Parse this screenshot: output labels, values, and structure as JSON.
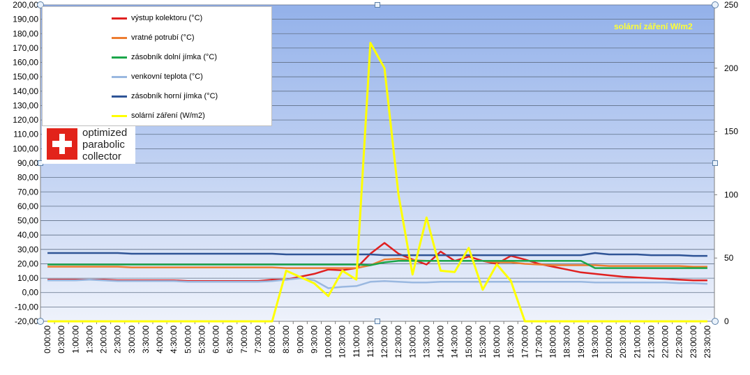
{
  "chart_data": {
    "type": "line",
    "title": "",
    "annotation": "solární záření W/m2",
    "y_left": {
      "ylim": [
        -20,
        200
      ],
      "step": 10,
      "ticks": [
        "-20,00",
        "-10,00",
        "0,00",
        "10,00",
        "20,00",
        "30,00",
        "40,00",
        "50,00",
        "60,00",
        "70,00",
        "80,00",
        "90,00",
        "100,00",
        "110,00",
        "120,00",
        "130,00",
        "140,00",
        "150,00",
        "160,00",
        "170,00",
        "180,00",
        "190,00",
        "200,00"
      ]
    },
    "y_right": {
      "ylim": [
        0,
        250
      ],
      "step": 50,
      "ticks": [
        "0",
        "50",
        "100",
        "150",
        "200",
        "250"
      ]
    },
    "grid": true,
    "legend_position": "top-left",
    "x": [
      "0:00:00",
      "0:30:00",
      "1:00:00",
      "1:30:00",
      "2:00:00",
      "2:30:00",
      "3:00:00",
      "3:30:00",
      "4:00:00",
      "4:30:00",
      "5:00:00",
      "5:30:00",
      "6:00:00",
      "6:30:00",
      "7:00:00",
      "7:30:00",
      "8:00:00",
      "8:30:00",
      "9:00:00",
      "9:30:00",
      "10:00:00",
      "10:30:00",
      "11:00:00",
      "11:30:00",
      "12:00:00",
      "12:30:00",
      "13:00:00",
      "13:30:00",
      "14:00:00",
      "14:30:00",
      "15:00:00",
      "15:30:00",
      "16:00:00",
      "16:30:00",
      "17:00:00",
      "17:30:00",
      "18:00:00",
      "18:30:00",
      "19:00:00",
      "19:30:00",
      "20:00:00",
      "20:30:00",
      "21:00:00",
      "21:30:00",
      "22:00:00",
      "22:30:00",
      "23:00:00",
      "23:30:00"
    ],
    "series": [
      {
        "name": "výstup kolektoru (°C)",
        "color": "#e02020",
        "axis": "left",
        "values": [
          9,
          9,
          9,
          9,
          9,
          8.5,
          8.5,
          8.5,
          8.5,
          8.5,
          8,
          8,
          8,
          8,
          8,
          8,
          9,
          9,
          11,
          13,
          16,
          15.5,
          17,
          27,
          34.5,
          27,
          23,
          19.5,
          28.5,
          22,
          25,
          22,
          20,
          25.5,
          23,
          20,
          18,
          16,
          14,
          13,
          12,
          11,
          10.5,
          10,
          9.5,
          9,
          8.5,
          8.5
        ]
      },
      {
        "name": "vratné potrubí (°C)",
        "color": "#ed7d31",
        "axis": "left",
        "values": [
          18,
          18,
          18,
          18,
          18,
          18,
          17.5,
          17.5,
          17.5,
          17.5,
          17.5,
          17.5,
          17.5,
          17.5,
          17.5,
          17.5,
          17.5,
          17,
          17,
          17,
          17,
          17,
          17,
          19,
          23,
          23.5,
          22.5,
          22,
          22,
          22,
          22,
          22,
          21,
          21,
          20,
          19.5,
          19,
          19,
          19,
          19,
          18.5,
          18.5,
          18.5,
          18.5,
          18.5,
          18.5,
          18,
          18
        ]
      },
      {
        "name": "zásobník dolní jímka  (°C)",
        "color": "#1ba64a",
        "axis": "left",
        "values": [
          19.5,
          19.5,
          19.5,
          19.5,
          19.5,
          19.5,
          19.5,
          19.5,
          19.5,
          19.5,
          19.5,
          19.5,
          19.5,
          19.5,
          19.5,
          19.5,
          19.5,
          19.5,
          19.5,
          19.5,
          19.5,
          19.5,
          19.5,
          19,
          21,
          22,
          22,
          22,
          22,
          22,
          22,
          22,
          22,
          22,
          22,
          22,
          22,
          22,
          22,
          17,
          17,
          17,
          17,
          17,
          17,
          17,
          17,
          17
        ]
      },
      {
        "name": "venkovní teplota (°C)",
        "color": "#9ab8e0",
        "axis": "left",
        "values": [
          8.5,
          8.5,
          8.5,
          9,
          8.5,
          8,
          8,
          8,
          8,
          8,
          7.5,
          7.5,
          7.5,
          7.5,
          7.5,
          7.5,
          8,
          9,
          10,
          8.5,
          3,
          4,
          4.5,
          7.5,
          8,
          7.5,
          7,
          7,
          7.5,
          7.5,
          7.5,
          7.5,
          7.5,
          7.5,
          7.5,
          7.5,
          7.5,
          7.5,
          7.5,
          7,
          7,
          7,
          7,
          7,
          7,
          6.5,
          6.5,
          6
        ]
      },
      {
        "name": "zásobník horní jímka (°C)",
        "color": "#2f5496",
        "axis": "left",
        "values": [
          27.5,
          27.5,
          27.5,
          27.5,
          27.5,
          27.5,
          27,
          27,
          27,
          27,
          27,
          27,
          27,
          27,
          27,
          27,
          27,
          26.5,
          26.5,
          26.5,
          26.5,
          26.5,
          26.5,
          26.5,
          26,
          26,
          26,
          26,
          26,
          26,
          26,
          26,
          26,
          26,
          26,
          26,
          26,
          26,
          26,
          27.5,
          26.5,
          26.5,
          26.5,
          26,
          26,
          26,
          25.5,
          25.5
        ]
      },
      {
        "name": "solární záření (W/m2)",
        "color": "#ffff00",
        "axis": "right",
        "values": [
          0,
          0,
          0,
          0,
          0,
          0,
          0,
          0,
          0,
          0,
          0,
          0,
          0,
          0,
          0,
          0,
          0,
          40,
          35,
          30,
          20,
          40,
          33,
          220,
          200,
          100,
          37,
          82,
          40,
          39,
          58,
          25,
          45,
          32,
          0,
          0,
          0,
          0,
          0,
          0,
          0,
          0,
          0,
          0,
          0,
          0,
          0,
          0
        ]
      }
    ]
  },
  "legend": {
    "items": [
      {
        "label": "výstup kolektoru (°C)",
        "color": "#e02020"
      },
      {
        "label": "vratné potrubí (°C)",
        "color": "#ed7d31"
      },
      {
        "label": "zásobník dolní jímka  (°C)",
        "color": "#1ba64a"
      },
      {
        "label": "venkovní teplota (°C)",
        "color": "#9ab8e0"
      },
      {
        "label": "zásobník horní jímka (°C)",
        "color": "#2f5496"
      },
      {
        "label": "solární záření (W/m2)",
        "color": "#ffff00"
      }
    ]
  },
  "product": {
    "logo_lines": [
      "optimized",
      "parabolic",
      "collector"
    ]
  },
  "colors": {
    "plot_top": "#93b1ea",
    "plot_bottom": "#eef2fb",
    "grid": "#5f6f86",
    "axis": "#7f7f7f"
  }
}
